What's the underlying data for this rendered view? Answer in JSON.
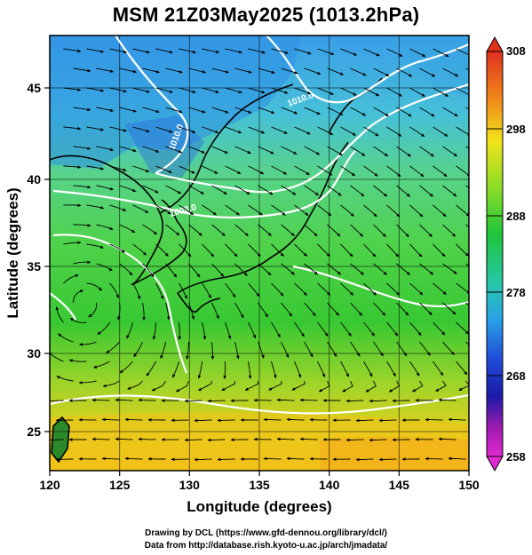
{
  "title": "MSM 21Z03May2025 (1013.2hPa)",
  "map": {
    "lon_range": [
      120,
      150
    ],
    "lat_range": [
      22.5,
      47.5
    ],
    "xlabel": "Longitude (degrees)",
    "ylabel": "Latitude  (degrees)",
    "xticks": [
      "120",
      "125",
      "130",
      "135",
      "140",
      "145",
      "150"
    ],
    "yticks": [
      "25",
      "30",
      "35",
      "40",
      "45"
    ],
    "contour_labels": [
      "1010.0",
      "1008.0",
      "1010.0"
    ]
  },
  "colorbar": {
    "labels": [
      "308",
      "298",
      "288",
      "278",
      "268",
      "258"
    ],
    "colors": [
      "#e0301e",
      "#f08a1a",
      "#f2e21a",
      "#7fdc2a",
      "#1fc43a",
      "#27c7a7",
      "#2aa3e8",
      "#1f4bd9",
      "#1a1aa6",
      "#a01ab0",
      "#e02ad0"
    ]
  },
  "credits": {
    "line1": "Drawing by DCL (https://www.gfd-dennou.org/library/dcl/)",
    "line2": "Data from http://database.rish.kyoto-u.ac.jp/arch/jmadata/"
  }
}
